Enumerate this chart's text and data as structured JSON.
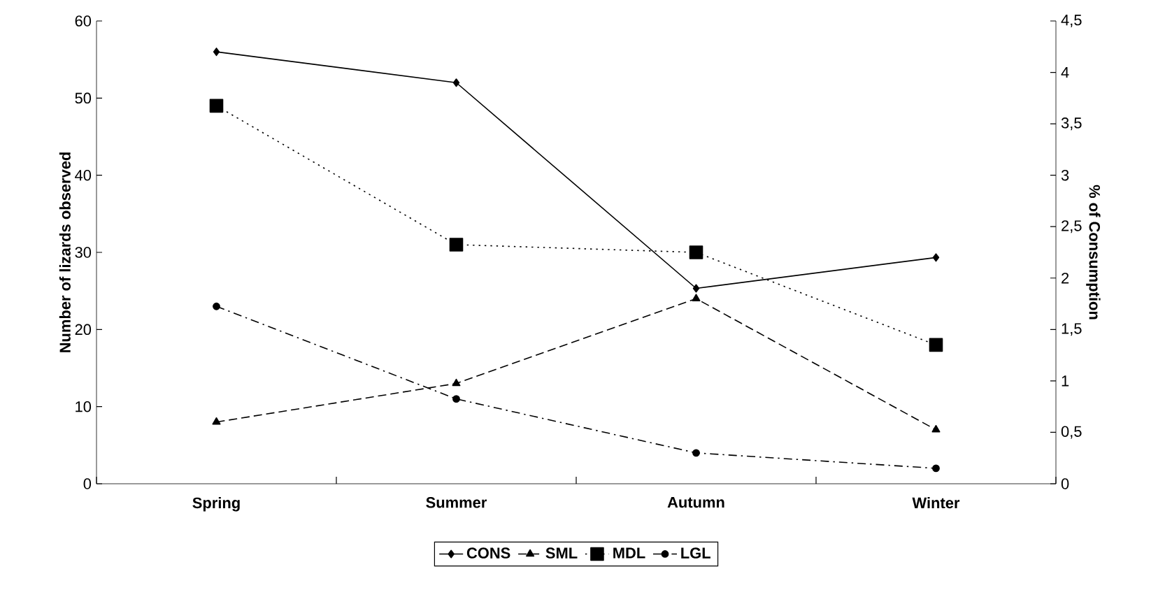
{
  "chart_data": {
    "type": "line",
    "ylabel": "Number of lizards observed",
    "y2label": "% of Consumption",
    "categories": [
      "Spring",
      "Summer",
      "Autumn",
      "Winter"
    ],
    "series": [
      {
        "name": "CONS",
        "color": "#000000",
        "values": [
          4.2,
          3.9,
          1.9,
          2.2
        ],
        "axis": "y2",
        "marker": "diamond",
        "line_style": "solid"
      },
      {
        "name": "SML",
        "color": "#000000",
        "values": [
          8,
          13,
          24,
          7
        ],
        "marker": "triangle",
        "line_style": "dashed"
      },
      {
        "name": "MDL",
        "color": "#000000",
        "values": [
          49,
          31,
          30,
          18
        ],
        "marker": "square",
        "line_style": "dotted"
      },
      {
        "name": "LGL",
        "color": "#000000",
        "values": [
          23,
          11,
          4,
          2
        ],
        "marker": "circle",
        "line_style": "dashdot"
      }
    ],
    "ylim": [
      0,
      60
    ],
    "yticks": [
      0,
      10,
      20,
      30,
      40,
      50,
      60
    ],
    "y2lim": [
      0,
      4.5
    ],
    "y2ticks": [
      0,
      {
        "value": 0.5,
        "label": "0,5"
      },
      1,
      {
        "value": 1.5,
        "label": "1,5"
      },
      2,
      {
        "value": 2.5,
        "label": "2,5"
      },
      3,
      {
        "value": 3.5,
        "label": "3,5"
      },
      4,
      {
        "value": 4.5,
        "label": "4,5"
      }
    ],
    "grid": false,
    "legend": "bottom"
  }
}
